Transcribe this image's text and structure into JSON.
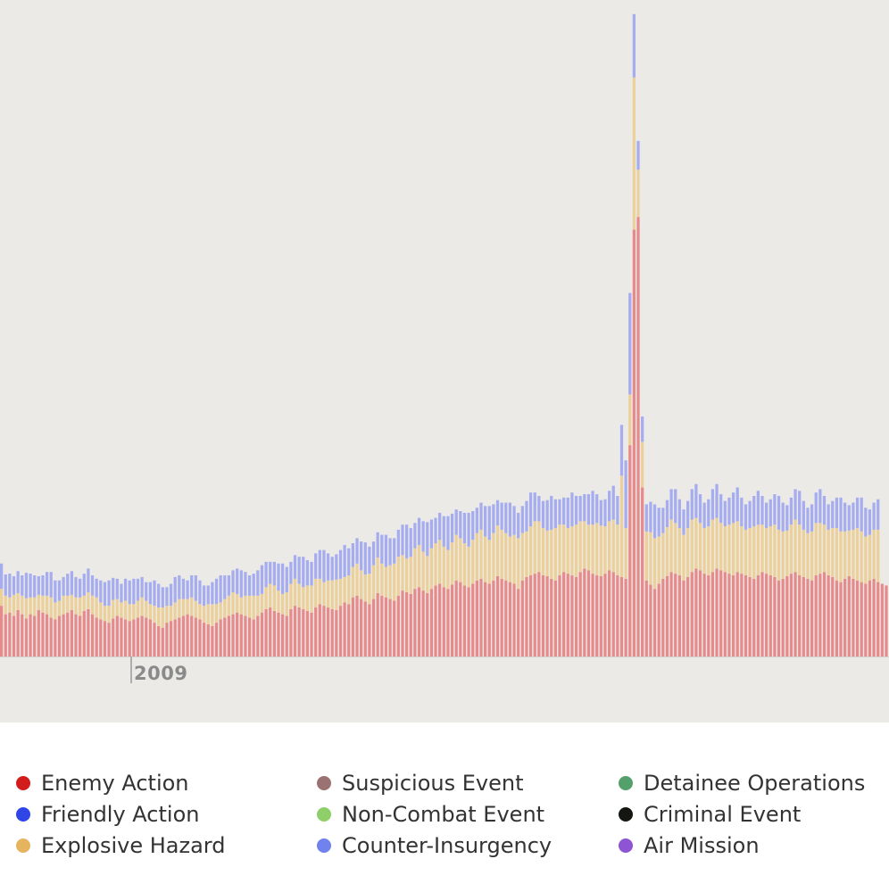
{
  "chart_data": {
    "type": "bar",
    "stacked": true,
    "title": "",
    "xlabel": "",
    "ylabel": "",
    "x_tick_labels": [
      "2009"
    ],
    "y_axis_visible": false,
    "grid": false,
    "legend_position": "bottom",
    "series_order": [
      "Enemy Action",
      "Explosive Hazard",
      "Counter-Insurgency"
    ],
    "series": [
      {
        "name": "Enemy Action",
        "color": "#e78a8c",
        "values": [
          60,
          50,
          52,
          48,
          55,
          50,
          45,
          50,
          48,
          55,
          52,
          50,
          46,
          44,
          48,
          50,
          52,
          55,
          50,
          48,
          54,
          56,
          50,
          46,
          44,
          42,
          40,
          45,
          48,
          46,
          44,
          42,
          44,
          46,
          48,
          46,
          44,
          40,
          36,
          34,
          40,
          42,
          44,
          46,
          48,
          50,
          48,
          46,
          44,
          40,
          38,
          36,
          40,
          44,
          46,
          48,
          50,
          52,
          50,
          48,
          46,
          44,
          48,
          52,
          56,
          58,
          54,
          52,
          50,
          48,
          56,
          60,
          58,
          56,
          54,
          52,
          58,
          62,
          60,
          58,
          56,
          55,
          60,
          64,
          62,
          70,
          72,
          68,
          65,
          62,
          68,
          75,
          72,
          70,
          68,
          66,
          72,
          78,
          76,
          74,
          80,
          82,
          78,
          75,
          80,
          84,
          86,
          82,
          80,
          85,
          90,
          88,
          84,
          82,
          86,
          90,
          92,
          88,
          86,
          90,
          95,
          92,
          90,
          88,
          86,
          80,
          90,
          94,
          96,
          98,
          100,
          96,
          95,
          92,
          90,
          96,
          100,
          98,
          96,
          94,
          100,
          104,
          102,
          98,
          96,
          95,
          98,
          102,
          100,
          96,
          94,
          92,
          250,
          505,
          520,
          200,
          90,
          85,
          80,
          86,
          92,
          95,
          100,
          98,
          96,
          90,
          94,
          100,
          104,
          102,
          98,
          96,
          100,
          104,
          102,
          100,
          98,
          96,
          100,
          98,
          96,
          94,
          92,
          96,
          100,
          98,
          96,
          94,
          90,
          92,
          95,
          98,
          100,
          96,
          94,
          92,
          90,
          96,
          98,
          100,
          96,
          94,
          90,
          88,
          92,
          95,
          92,
          90,
          88,
          86,
          90,
          92,
          88,
          86,
          84
        ]
      },
      {
        "name": "Explosive Hazard",
        "color": "#ecd09a",
        "values": [
          20,
          22,
          18,
          25,
          20,
          22,
          24,
          20,
          22,
          18,
          20,
          22,
          24,
          20,
          18,
          22,
          20,
          18,
          20,
          22,
          18,
          20,
          22,
          24,
          20,
          18,
          20,
          22,
          20,
          18,
          22,
          20,
          18,
          20,
          22,
          20,
          18,
          20,
          22,
          24,
          20,
          18,
          20,
          22,
          20,
          18,
          22,
          20,
          18,
          20,
          24,
          26,
          22,
          20,
          22,
          24,
          26,
          22,
          20,
          24,
          26,
          28,
          24,
          22,
          26,
          28,
          30,
          26,
          24,
          28,
          30,
          32,
          28,
          26,
          30,
          32,
          34,
          30,
          28,
          32,
          34,
          36,
          32,
          30,
          34,
          36,
          38,
          34,
          32,
          36,
          40,
          42,
          38,
          36,
          40,
          44,
          46,
          42,
          40,
          44,
          48,
          50,
          46,
          44,
          48,
          50,
          52,
          48,
          46,
          50,
          54,
          52,
          50,
          48,
          52,
          56,
          58,
          54,
          52,
          56,
          60,
          58,
          56,
          54,
          58,
          60,
          56,
          54,
          58,
          62,
          60,
          56,
          54,
          58,
          62,
          60,
          56,
          54,
          58,
          62,
          60,
          56,
          54,
          58,
          62,
          60,
          56,
          58,
          62,
          60,
          120,
          60,
          60,
          180,
          56,
          54,
          58,
          62,
          60,
          56,
          54,
          58,
          62,
          60,
          56,
          54,
          58,
          62,
          60,
          56,
          54,
          58,
          62,
          60,
          56,
          54,
          58,
          62,
          60,
          56,
          54,
          58,
          62,
          60,
          56,
          54,
          58,
          62,
          60,
          56,
          54,
          58,
          62,
          60,
          56,
          54,
          58,
          62,
          60,
          56,
          54,
          58,
          62,
          60,
          56,
          54,
          58,
          62,
          60,
          56,
          54,
          58,
          62
        ]
      },
      {
        "name": "Counter-Insurgency",
        "color": "#a5acef",
        "values": [
          30,
          25,
          28,
          22,
          26,
          24,
          30,
          28,
          26,
          22,
          24,
          28,
          30,
          26,
          24,
          22,
          26,
          28,
          24,
          22,
          26,
          28,
          24,
          22,
          26,
          28,
          30,
          26,
          24,
          22,
          26,
          28,
          30,
          26,
          24,
          22,
          26,
          30,
          28,
          24,
          22,
          26,
          30,
          28,
          24,
          22,
          26,
          30,
          28,
          24,
          22,
          26,
          30,
          32,
          28,
          24,
          26,
          30,
          32,
          28,
          24,
          26,
          30,
          34,
          30,
          26,
          28,
          32,
          36,
          30,
          26,
          28,
          32,
          36,
          30,
          28,
          30,
          34,
          38,
          32,
          28,
          30,
          34,
          38,
          32,
          28,
          30,
          34,
          38,
          32,
          28,
          30,
          34,
          38,
          32,
          30,
          32,
          36,
          40,
          34,
          30,
          32,
          36,
          40,
          34,
          30,
          32,
          36,
          40,
          34,
          30,
          32,
          36,
          40,
          34,
          30,
          32,
          36,
          40,
          34,
          30,
          32,
          36,
          40,
          34,
          30,
          32,
          36,
          40,
          34,
          30,
          32,
          36,
          40,
          34,
          30,
          32,
          36,
          40,
          34,
          30,
          32,
          36,
          40,
          34,
          30,
          32,
          36,
          40,
          34,
          60,
          80,
          120,
          75,
          34,
          30,
          32,
          36,
          40,
          34,
          30,
          32,
          36,
          40,
          34,
          30,
          32,
          36,
          40,
          34,
          30,
          32,
          36,
          40,
          34,
          30,
          32,
          36,
          40,
          34,
          30,
          32,
          36,
          40,
          34,
          30,
          32,
          36,
          40,
          34,
          30,
          32,
          36,
          40,
          34,
          30,
          32,
          36,
          40,
          34,
          30,
          32,
          36,
          40,
          34,
          30,
          32,
          36,
          40,
          34,
          30,
          32,
          36
        ]
      }
    ]
  },
  "legend": {
    "columns": [
      [
        {
          "label": "Enemy Action",
          "color": "#d21c1c"
        },
        {
          "label": "Friendly Action",
          "color": "#2f45e6"
        },
        {
          "label": "Explosive Hazard",
          "color": "#e6b45e"
        }
      ],
      [
        {
          "label": "Suspicious Event",
          "color": "#9b7272"
        },
        {
          "label": "Non-Combat Event",
          "color": "#8ecf6a"
        },
        {
          "label": "Counter-Insurgency",
          "color": "#6f82ee"
        }
      ],
      [
        {
          "label": "Detainee Operations",
          "color": "#54a06a"
        },
        {
          "label": "Criminal Event",
          "color": "#141612"
        },
        {
          "label": "Air Mission",
          "color": "#8f54d4"
        }
      ]
    ]
  }
}
